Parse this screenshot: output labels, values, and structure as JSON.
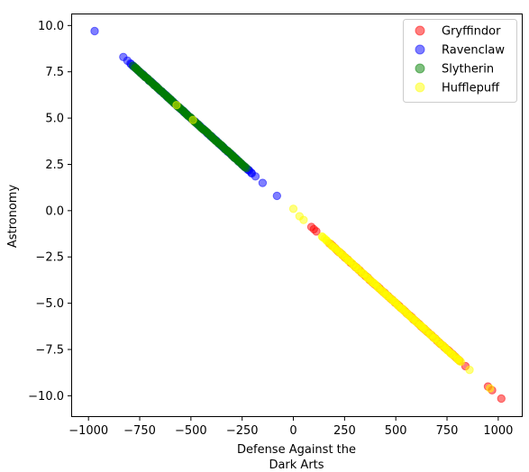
{
  "chart_data": {
    "type": "scatter",
    "title": "",
    "xlabel_lines": [
      "Defense Against the",
      "Dark Arts"
    ],
    "ylabel": "Astronomy",
    "xlim": [
      -1080,
      1115
    ],
    "ylim": [
      -11.1,
      10.6
    ],
    "xticks": [
      -1000,
      -750,
      -500,
      -250,
      0,
      250,
      500,
      750,
      1000
    ],
    "xtick_labels": [
      "−1000",
      "−750",
      "−500",
      "−250",
      "0",
      "250",
      "500",
      "750",
      "1000"
    ],
    "yticks": [
      10.0,
      7.5,
      5.0,
      2.5,
      0.0,
      -2.5,
      -5.0,
      -7.5,
      -10.0
    ],
    "ytick_labels": [
      "10.0",
      "7.5",
      "5.0",
      "2.5",
      "0.0",
      "−2.5",
      "−5.0",
      "−7.5",
      "−10.0"
    ],
    "grid": false,
    "legend_position": "top-right",
    "marker_opacity": 0.5,
    "series": [
      {
        "name": "Gryffindor",
        "color": "#ff0000",
        "clusters": [
          {
            "x_from": 175,
            "x_to": 810,
            "count": 95
          }
        ],
        "points": [
          {
            "x": 88,
            "y": -0.88
          },
          {
            "x": 100,
            "y": -1.0
          },
          {
            "x": 112,
            "y": -1.12
          },
          {
            "x": 840,
            "y": -8.4
          },
          {
            "x": 950,
            "y": -9.5
          },
          {
            "x": 970,
            "y": -9.7
          },
          {
            "x": 1015,
            "y": -10.15
          }
        ]
      },
      {
        "name": "Ravenclaw",
        "color": "#0000ff",
        "clusters": [
          {
            "x_from": -790,
            "x_to": -200,
            "count": 95
          }
        ],
        "points": [
          {
            "x": -970,
            "y": 9.7
          },
          {
            "x": -830,
            "y": 8.3
          },
          {
            "x": -810,
            "y": 8.1
          },
          {
            "x": -795,
            "y": 7.95
          },
          {
            "x": -185,
            "y": 1.85
          },
          {
            "x": -150,
            "y": 1.5
          },
          {
            "x": -80,
            "y": 0.8
          }
        ]
      },
      {
        "name": "Slytherin",
        "color": "#008000",
        "clusters": [
          {
            "x_from": -780,
            "x_to": -230,
            "count": 100
          }
        ],
        "points": []
      },
      {
        "name": "Hufflepuff",
        "color": "#ffff00",
        "clusters": [
          {
            "x_from": 140,
            "x_to": 820,
            "count": 110
          }
        ],
        "points": [
          {
            "x": -570,
            "y": 5.7
          },
          {
            "x": -490,
            "y": 4.9
          },
          {
            "x": 0,
            "y": 0.1
          },
          {
            "x": 30,
            "y": -0.3
          },
          {
            "x": 50,
            "y": -0.5
          },
          {
            "x": 860,
            "y": -8.6
          },
          {
            "x": 960,
            "y": -9.6
          }
        ]
      }
    ],
    "relation": "y = -x / 100"
  }
}
